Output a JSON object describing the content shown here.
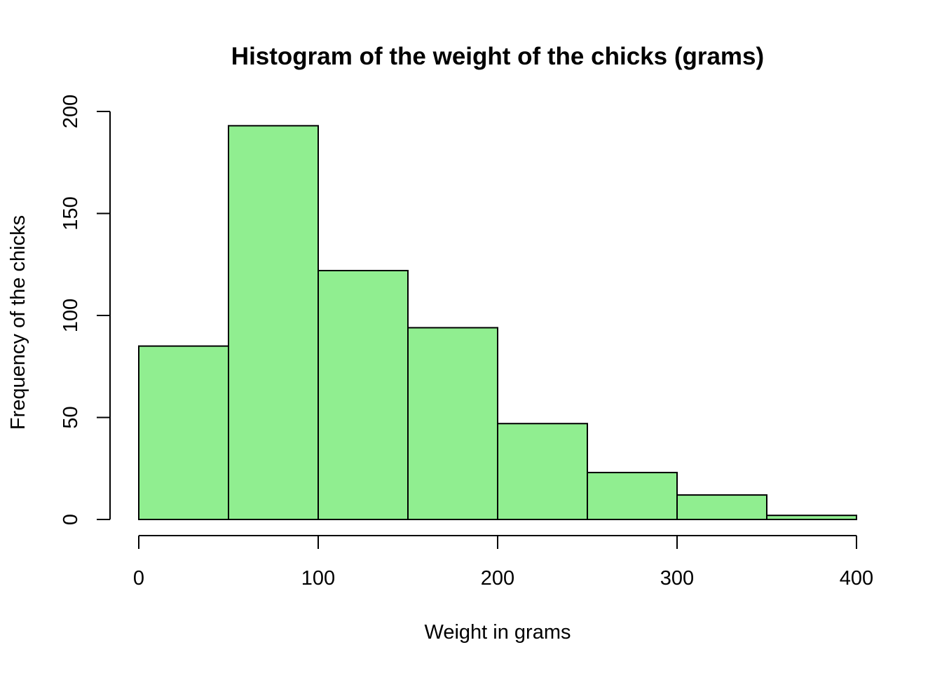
{
  "chart_data": {
    "type": "bar",
    "title": "Histogram of the weight of the chicks (grams)",
    "xlabel": "Weight in grams",
    "ylabel": "Frequency of the chicks",
    "bin_edges": [
      0,
      50,
      100,
      150,
      200,
      250,
      300,
      350,
      400
    ],
    "values": [
      85,
      193,
      122,
      94,
      47,
      23,
      12,
      2
    ],
    "xlim": [
      0,
      400
    ],
    "ylim": [
      0,
      200
    ],
    "x_ticks": [
      0,
      100,
      200,
      300,
      400
    ],
    "y_ticks": [
      0,
      50,
      100,
      150,
      200
    ],
    "bar_color": "#90ee90",
    "edge_color": "#000000",
    "grid": false
  }
}
